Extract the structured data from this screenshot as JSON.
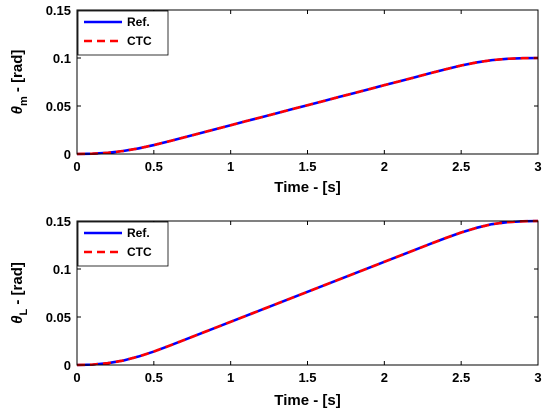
{
  "colors": {
    "ref": "#0000ff",
    "ctc": "#ff0000",
    "axis": "#000000",
    "background": "#ffffff"
  },
  "chart_data": [
    {
      "type": "line",
      "xlabel": "Time - [s]",
      "ylabel_symbol": "θ",
      "ylabel_sub": "m",
      "ylabel_unit": " - [rad]",
      "xlim": [
        0,
        3
      ],
      "ylim": [
        0,
        0.15
      ],
      "xticks": [
        0,
        0.5,
        1,
        1.5,
        2,
        2.5,
        3
      ],
      "xtick_labels": [
        "0",
        "0.5",
        "1",
        "1.5",
        "2",
        "2.5",
        "3"
      ],
      "yticks": [
        0,
        0.05,
        0.1,
        0.15
      ],
      "ytick_labels": [
        "0",
        "0.05",
        "0.1",
        "0.15"
      ],
      "grid": false,
      "legend_position": "top-left",
      "x": [
        0,
        0.1,
        0.2,
        0.3,
        0.4,
        0.5,
        0.6,
        0.7,
        0.8,
        0.9,
        1.0,
        1.1,
        1.2,
        1.3,
        1.4,
        1.5,
        1.6,
        1.7,
        1.8,
        1.9,
        2.0,
        2.1,
        2.2,
        2.3,
        2.4,
        2.5,
        2.6,
        2.7,
        2.8,
        2.9,
        3.0
      ],
      "series": [
        {
          "name": "Ref.",
          "style": "solid",
          "values": [
            0,
            0.0003,
            0.0012,
            0.0031,
            0.0058,
            0.0093,
            0.0133,
            0.0174,
            0.0216,
            0.0258,
            0.03,
            0.0342,
            0.0383,
            0.0425,
            0.0467,
            0.0508,
            0.055,
            0.0592,
            0.0633,
            0.0675,
            0.0717,
            0.0758,
            0.08,
            0.0842,
            0.0883,
            0.0922,
            0.0954,
            0.0978,
            0.0992,
            0.0998,
            0.1
          ]
        },
        {
          "name": "CTC",
          "style": "dashed",
          "values": [
            0,
            0.0003,
            0.0012,
            0.0031,
            0.0058,
            0.0093,
            0.0133,
            0.0174,
            0.0216,
            0.0258,
            0.03,
            0.0342,
            0.0383,
            0.0425,
            0.0467,
            0.0508,
            0.055,
            0.0592,
            0.0633,
            0.0675,
            0.0717,
            0.0758,
            0.08,
            0.0842,
            0.0883,
            0.0922,
            0.0954,
            0.0978,
            0.0992,
            0.0998,
            0.1
          ]
        }
      ]
    },
    {
      "type": "line",
      "xlabel": "Time - [s]",
      "ylabel_symbol": "θ",
      "ylabel_sub": "L",
      "ylabel_unit": " - [rad]",
      "xlim": [
        0,
        3
      ],
      "ylim": [
        0,
        0.15
      ],
      "xticks": [
        0,
        0.5,
        1,
        1.5,
        2,
        2.5,
        3
      ],
      "xtick_labels": [
        "0",
        "0.5",
        "1",
        "1.5",
        "2",
        "2.5",
        "3"
      ],
      "yticks": [
        0,
        0.05,
        0.1,
        0.15
      ],
      "ytick_labels": [
        "0",
        "0.05",
        "0.1",
        "0.15"
      ],
      "grid": false,
      "legend_position": "top-left",
      "x": [
        0,
        0.1,
        0.2,
        0.3,
        0.4,
        0.5,
        0.6,
        0.7,
        0.8,
        0.9,
        1.0,
        1.1,
        1.2,
        1.3,
        1.4,
        1.5,
        1.6,
        1.7,
        1.8,
        1.9,
        2.0,
        2.1,
        2.2,
        2.3,
        2.4,
        2.5,
        2.6,
        2.7,
        2.8,
        2.9,
        3.0
      ],
      "series": [
        {
          "name": "Ref.",
          "style": "solid",
          "values": [
            0,
            0.0004,
            0.0019,
            0.0046,
            0.0088,
            0.014,
            0.02,
            0.0262,
            0.0325,
            0.0387,
            0.045,
            0.0512,
            0.0575,
            0.0637,
            0.07,
            0.0762,
            0.0825,
            0.0887,
            0.095,
            0.1012,
            0.1075,
            0.1137,
            0.12,
            0.1262,
            0.1323,
            0.138,
            0.1429,
            0.1467,
            0.1488,
            0.1497,
            0.15
          ]
        },
        {
          "name": "CTC",
          "style": "dashed",
          "values": [
            0,
            0.0004,
            0.0019,
            0.0046,
            0.0088,
            0.014,
            0.02,
            0.0262,
            0.0325,
            0.0387,
            0.045,
            0.0512,
            0.0575,
            0.0637,
            0.07,
            0.0762,
            0.0825,
            0.0887,
            0.095,
            0.1012,
            0.1075,
            0.1137,
            0.12,
            0.1262,
            0.1323,
            0.138,
            0.1429,
            0.1467,
            0.1488,
            0.1497,
            0.15
          ]
        }
      ]
    }
  ]
}
